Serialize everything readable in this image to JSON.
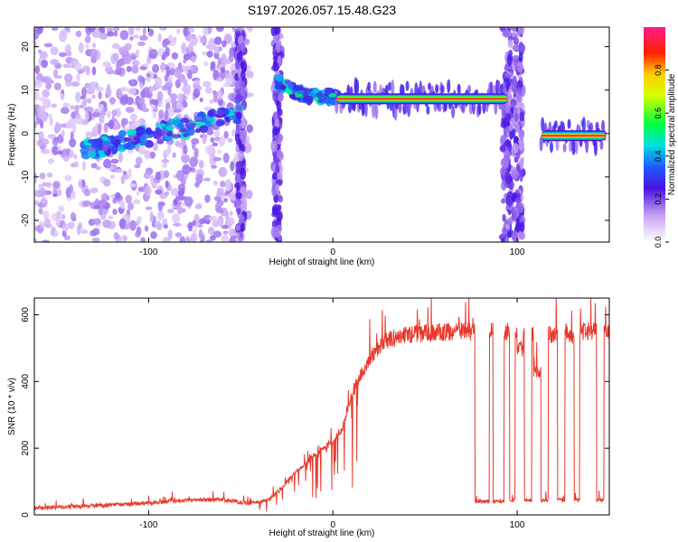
{
  "title": "S197.2026.057.15.48.G23",
  "chart_data": [
    {
      "type": "heatmap",
      "xlabel": "Height of straight line (km)",
      "ylabel": "Frequency (Hz)",
      "xlim": [
        -162,
        150
      ],
      "ylim": [
        -25,
        24.5
      ],
      "xticks": [
        -100,
        0,
        100
      ],
      "yticks": [
        -20,
        -10,
        0,
        10,
        20
      ],
      "grid": false,
      "features": [
        {
          "name": "scattered low-amplitude noise",
          "x": [
            -162,
            -45
          ],
          "y": [
            -25,
            24.5
          ],
          "amplitude": 0.05
        },
        {
          "name": "rising streak",
          "x_start": -135,
          "x_end": -50,
          "freq_start": -4,
          "freq_end": 4.5,
          "amplitude": 0.45
        },
        {
          "name": "decaying arc",
          "x_start": -30,
          "x_end": 2,
          "freq_start": 12,
          "freq_end": 8,
          "amplitude": 0.4
        },
        {
          "name": "strong line",
          "x_start": 2,
          "x_end": 95,
          "freq": 8,
          "amplitude": 1.0
        },
        {
          "name": "strong line",
          "x_start": 113,
          "x_end": 148,
          "freq": -0.5,
          "amplitude": 1.0
        }
      ],
      "colorbar": {
        "label": "Normalized spectral amplitude",
        "range": [
          0,
          1
        ],
        "ticks": [
          "0.0",
          "0.2",
          "0.4",
          "0.6",
          "0.8"
        ]
      }
    },
    {
      "type": "line",
      "xlabel": "Height of straight line (km)",
      "ylabel": "SNR (10 * v/v)",
      "xlim": [
        -162,
        150
      ],
      "ylim": [
        0,
        650
      ],
      "xticks": [
        -100,
        0,
        100
      ],
      "yticks": [
        0,
        200,
        400,
        600
      ],
      "grid": false,
      "series": [
        {
          "name": "SNR",
          "color": "#e8392c",
          "x": [
            -162,
            -140,
            -120,
            -100,
            -80,
            -60,
            -45,
            -35,
            -28,
            -20,
            -10,
            0,
            5,
            10,
            15,
            20,
            25,
            30,
            40,
            50,
            60,
            70,
            76
          ],
          "values": [
            20,
            25,
            30,
            35,
            45,
            45,
            35,
            45,
            80,
            130,
            180,
            220,
            260,
            360,
            420,
            470,
            505,
            525,
            540,
            545,
            548,
            550,
            550
          ],
          "dropouts": [
            {
              "x": [
                77,
                85
              ],
              "value": 40
            },
            {
              "x": [
                87,
                93
              ],
              "value": 40
            },
            {
              "x": [
                96,
                99
              ],
              "value": 45
            },
            {
              "x": [
                104,
                108
              ],
              "value": 45
            },
            {
              "x": [
                113,
                117
              ],
              "value": 45
            },
            {
              "x": [
                122,
                126
              ],
              "value": 45
            },
            {
              "x": [
                131,
                134
              ],
              "value": 45
            },
            {
              "x": [
                143,
                147
              ],
              "value": 45
            }
          ],
          "segments": [
            {
              "x": [
                100,
                104
              ],
              "value": 500
            },
            {
              "x": [
                109,
                113
              ],
              "value": 430
            },
            {
              "x": [
                118,
                122
              ],
              "value": 540
            },
            {
              "x": [
                127,
                131
              ],
              "value": 540
            },
            {
              "x": [
                135,
                143
              ],
              "value": 550
            },
            {
              "x": [
                147,
                150
              ],
              "value": 545
            }
          ]
        }
      ]
    }
  ]
}
